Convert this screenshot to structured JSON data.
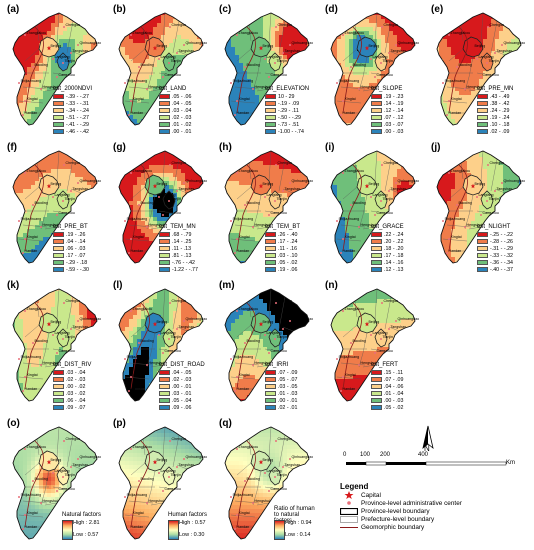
{
  "cities": [
    "Chengde",
    "Zhangjiakou",
    "Qinhuangdao",
    "Tangshan",
    "Beijing",
    "Tianjin",
    "Langfang",
    "Baoding",
    "Cangzhou",
    "Shijiazhuang",
    "Hengshui",
    "Xingtai",
    "Handan"
  ],
  "panels": [
    {
      "label": "(a)",
      "title": "est_2000NDVI",
      "classes": [
        "-.39 - -.27",
        "-.33 - -.31",
        "-.34 - -.24",
        "-.51 - -.27",
        "-.41 - -.29",
        "-.46 - -.42"
      ],
      "colors": [
        "#d7191c",
        "#f07c4a",
        "#fdd08a",
        "#c9e88c",
        "#6fbf7a",
        "#2b83ba"
      ],
      "pattern": "ndvi"
    },
    {
      "label": "(b)",
      "title": "est_LAND",
      "classes": [
        ".05 - .06",
        ".04 - .05",
        ".03 - .04",
        ".02 - .03",
        ".01 - .02",
        ".00 - .01"
      ],
      "colors": [
        "#d7191c",
        "#f07c4a",
        "#fdd08a",
        "#c9e88c",
        "#6fbf7a",
        "#2b83ba"
      ],
      "pattern": "land"
    },
    {
      "label": "(c)",
      "title": "est_ELEVATION",
      "classes": [
        "10 - 29",
        "-.19 - .09",
        "-.29 - .11",
        "-.50 - -.29",
        "-.73 - .51",
        "-1.00 - -.74"
      ],
      "colors": [
        "#d7191c",
        "#f07c4a",
        "#fdd08a",
        "#c9e88c",
        "#6fbf7a",
        "#2b83ba"
      ],
      "pattern": "elev"
    },
    {
      "label": "(d)",
      "title": "est_SLOPE",
      "classes": [
        ".19 - .23",
        ".14 - .19",
        ".12 - .14",
        ".07 - .12",
        ".03 - .07",
        ".00 - .03"
      ],
      "colors": [
        "#d7191c",
        "#f07c4a",
        "#fdd08a",
        "#c9e88c",
        "#6fbf7a",
        "#2b83ba"
      ],
      "pattern": "slope"
    },
    {
      "label": "(e)",
      "title": "est_PRE_MN",
      "classes": [
        ".43 - .49",
        ".38 - .42",
        ".24 - .29",
        ".19 - .24",
        ".10 - .18",
        ".02 - .09"
      ],
      "colors": [
        "#d7191c",
        "#f07c4a",
        "#fdd08a",
        "#c9e88c",
        "#6fbf7a",
        "#2b83ba"
      ],
      "pattern": "premn"
    },
    {
      "label": "(f)",
      "title": "est_PRE_BT",
      "classes": [
        ".19 - .26",
        ".04 - .14",
        ".06 - .03",
        ".17 - .07",
        "-.29 - .18",
        "-.59 - -.30"
      ],
      "colors": [
        "#d7191c",
        "#f07c4a",
        "#fdd08a",
        "#c9e88c",
        "#6fbf7a",
        "#2b83ba"
      ],
      "pattern": "prebt"
    },
    {
      "label": "(g)",
      "title": "est_TEM_MN",
      ".classes": [],
      "classes": [
        ".68 - .79",
        ".14 - .25",
        ".11 - .13",
        ".81 - .13",
        "-.76 - -.42",
        "-1.22 - -.77"
      ],
      "colors": [
        "#d7191c",
        "#f07c4a",
        "#fdd08a",
        "#c9e88c",
        "#6fbf7a",
        "#2b83ba"
      ],
      "pattern": "temmn"
    },
    {
      "label": "(h)",
      "title": "est_TEM_BT",
      "classes": [
        ".26 - .40",
        ".17 - .24",
        ".11 - .16",
        ".03 - .10",
        ".05 - .02",
        ".19 - .06"
      ],
      "colors": [
        "#d7191c",
        "#f07c4a",
        "#fdd08a",
        "#c9e88c",
        "#6fbf7a",
        "#2b83ba"
      ],
      "pattern": "tembt"
    },
    {
      "label": "(i)",
      "title": "est_GRACE",
      "classes": [
        ".22 - .24",
        ".20 - .22",
        ".18 - .20",
        ".17 - .18",
        ".14 - .16",
        ".12 - .13"
      ],
      "colors": [
        "#d7191c",
        "#f07c4a",
        "#fdd08a",
        "#c9e88c",
        "#6fbf7a",
        "#2b83ba"
      ],
      "pattern": "grace"
    },
    {
      "label": "(j)",
      "title": "est_NLIGHT",
      "classes": [
        "-.25 - -.22",
        "-.28 - -.26",
        "-.31 - -.29",
        "-.33 - -.32",
        "-.36 - -.34",
        "-.40 - -.37"
      ],
      "colors": [
        "#d7191c",
        "#f07c4a",
        "#fdd08a",
        "#c9e88c",
        "#6fbf7a",
        "#2b83ba"
      ],
      "pattern": "nlight"
    },
    {
      "label": "(k)",
      "title": "est_DIST_RIV",
      "classes": [
        ".03 - .04",
        ".02 - .03",
        ".00 - .02",
        ".03 - .02",
        ".06 - .04",
        ".09 - .07"
      ],
      "colors": [
        "#d7191c",
        "#f07c4a",
        "#fdd08a",
        "#c9e88c",
        "#6fbf7a",
        "#2b83ba"
      ],
      "pattern": "distriv"
    },
    {
      "label": "(l)",
      "title": "est_DIST_ROAD",
      "classes": [
        ".04 - .05",
        ".02 - .03",
        ".00 - .01",
        ".03 - .01",
        ".05 - .04",
        ".09 - .06"
      ],
      "colors": [
        "#d7191c",
        "#f07c4a",
        "#fdd08a",
        "#c9e88c",
        "#6fbf7a",
        "#2b83ba"
      ],
      "pattern": "distroad"
    },
    {
      "label": "(m)",
      "title": "est_IRRI",
      "classes": [
        ".07 - .09",
        ".05 - .07",
        ".03 - .05",
        ".01 - .03",
        ".00 - .01",
        ".02 - .01"
      ],
      "colors": [
        "#d7191c",
        "#f07c4a",
        "#fdd08a",
        "#c9e88c",
        "#6fbf7a",
        "#2b83ba"
      ],
      "pattern": "irri"
    },
    {
      "label": "(n)",
      "title": "est_FERT",
      "classes": [
        ".15 - .11",
        ".07 - .09",
        ".04 - .06",
        ".01 - .04",
        ".00 - .03",
        ".05 - .02"
      ],
      "colors": [
        "#d7191c",
        "#f07c4a",
        "#fdd08a",
        "#c9e88c",
        "#6fbf7a",
        "#2b83ba"
      ],
      "pattern": "fert"
    }
  ],
  "gradient_panels": [
    {
      "label": "(o)",
      "title": "Natural factors",
      "high": "High : 2.81",
      "low": "Low : 0.57",
      "pattern": "natural"
    },
    {
      "label": "(p)",
      "title": "Human factors",
      "high": "High : 0.57",
      "low": "Low : 0.30",
      "pattern": "human"
    },
    {
      "label": "(q)",
      "title": "Ratio of human to natural factors",
      "high": "High : 0.94",
      "low": "Low : 0.14",
      "pattern": "ratio"
    }
  ],
  "north": "N",
  "scale": {
    "ticks": [
      "0",
      "100",
      "200",
      "400"
    ],
    "unit": "Km"
  },
  "legend": {
    "title": "Legend",
    "items": [
      "Capital",
      "Province-level administrative center",
      "Province-level boundary",
      "Prefecture-level boundary",
      "Geomorphic boundary"
    ]
  },
  "colors": {
    "high": "#d7191c",
    "mid": "#fdd08a",
    "low": "#2b83ba",
    "boundary": "#222222",
    "geomorphic": "#8b1a1a"
  }
}
